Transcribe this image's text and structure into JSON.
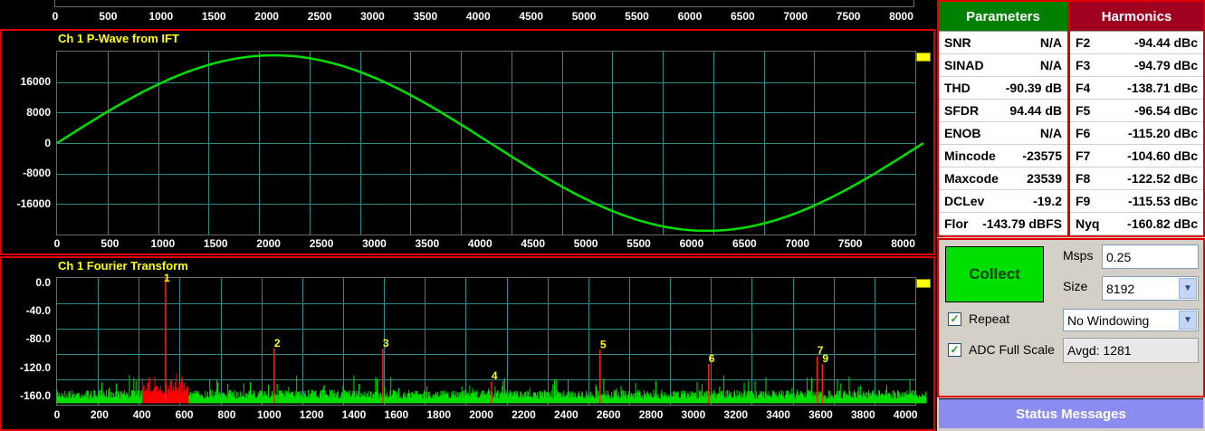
{
  "top_panel": {
    "x_ticks": [
      "0",
      "500",
      "1000",
      "1500",
      "2000",
      "2500",
      "3000",
      "3500",
      "4000",
      "4500",
      "5000",
      "5500",
      "6000",
      "6500",
      "7000",
      "7500",
      "8000"
    ]
  },
  "time_panel": {
    "title": "Ch 1 P-Wave from IFT",
    "y_ticks": [
      "16000",
      "8000",
      "0",
      "-8000",
      "-16000"
    ],
    "x_ticks": [
      "0",
      "500",
      "1000",
      "1500",
      "2000",
      "2500",
      "3000",
      "3500",
      "4000",
      "4500",
      "5000",
      "5500",
      "6000",
      "6500",
      "7000",
      "7500",
      "8000"
    ],
    "trace_color": "#00e000"
  },
  "fft_panel": {
    "title": "Ch 1 Fourier Transform",
    "y_ticks": [
      "0.0",
      "-40.0",
      "-80.0",
      "-120.0",
      "-160.0"
    ],
    "x_ticks": [
      "0",
      "200",
      "400",
      "600",
      "800",
      "1000",
      "1200",
      "1400",
      "1600",
      "1800",
      "2000",
      "2200",
      "2400",
      "2600",
      "2800",
      "3000",
      "3200",
      "3400",
      "3600",
      "3800",
      "4000"
    ],
    "harmonic_markers": [
      "1",
      "2",
      "3",
      "4",
      "5",
      "6",
      "7",
      "9"
    ],
    "noise_color": "#00e000",
    "signal_color": "#ff0000"
  },
  "chart_data": [
    {
      "type": "line",
      "title": "Ch 1 P-Wave from IFT",
      "xlim": [
        0,
        8192
      ],
      "ylim": [
        -24000,
        24000
      ],
      "series": [
        {
          "x": [
            0,
            512,
            1024,
            1536,
            2048,
            2560,
            3072,
            3584,
            4096,
            4608,
            5120,
            5632,
            6144,
            6656,
            7168,
            7680,
            8192
          ],
          "values": [
            0,
            9000,
            16600,
            21700,
            23500,
            21700,
            16600,
            9000,
            0,
            -9000,
            -16600,
            -21700,
            -23500,
            -21700,
            -16600,
            -9000,
            0
          ]
        }
      ]
    },
    {
      "type": "line",
      "title": "Ch 1 Fourier Transform",
      "xlim": [
        0,
        4096
      ],
      "ylim": [
        -170,
        0
      ],
      "series": [
        {
          "x": [
            512,
            1024,
            1536,
            2048,
            2560,
            3072,
            3584,
            3608
          ],
          "values": [
            0,
            -94.44,
            -94.79,
            -138.71,
            -96.54,
            -115.2,
            -104.6,
            -115.53
          ]
        }
      ]
    }
  ],
  "parameters": {
    "header": "Parameters",
    "rows": [
      {
        "name": "SNR",
        "value": "N/A"
      },
      {
        "name": "SINAD",
        "value": "N/A"
      },
      {
        "name": "THD",
        "value": "-90.39 dB"
      },
      {
        "name": "SFDR",
        "value": "94.44 dB"
      },
      {
        "name": "ENOB",
        "value": "N/A"
      },
      {
        "name": "Mincode",
        "value": "-23575"
      },
      {
        "name": "Maxcode",
        "value": "23539"
      },
      {
        "name": "DCLev",
        "value": "-19.2"
      },
      {
        "name": "Flor",
        "value": "-143.79 dBFS"
      }
    ]
  },
  "harmonics": {
    "header": "Harmonics",
    "rows": [
      {
        "name": "F2",
        "value": "-94.44 dBc"
      },
      {
        "name": "F3",
        "value": "-94.79 dBc"
      },
      {
        "name": "F4",
        "value": "-138.71 dBc"
      },
      {
        "name": "F5",
        "value": "-96.54 dBc"
      },
      {
        "name": "F6",
        "value": "-115.20 dBc"
      },
      {
        "name": "F7",
        "value": "-104.60 dBc"
      },
      {
        "name": "F8",
        "value": "-122.52 dBc"
      },
      {
        "name": "F9",
        "value": "-115.53 dBc"
      },
      {
        "name": "Nyq",
        "value": "-160.82 dBc"
      }
    ]
  },
  "controls": {
    "collect_label": "Collect",
    "msps_label": "Msps",
    "msps_value": "0.25",
    "size_label": "Size",
    "size_value": "8192",
    "repeat_label": "Repeat",
    "repeat_checked": "✓",
    "adc_label": "ADC Full Scale",
    "adc_checked": "✓",
    "window_value": "No Windowing",
    "avgd_text": "Avgd: 1281"
  },
  "status": {
    "header": "Status Messages"
  },
  "colors": {
    "params_header": "#008000",
    "harmonics_header": "#a00020",
    "panel_border": "#e00000",
    "grid": "#2d8a8a"
  }
}
